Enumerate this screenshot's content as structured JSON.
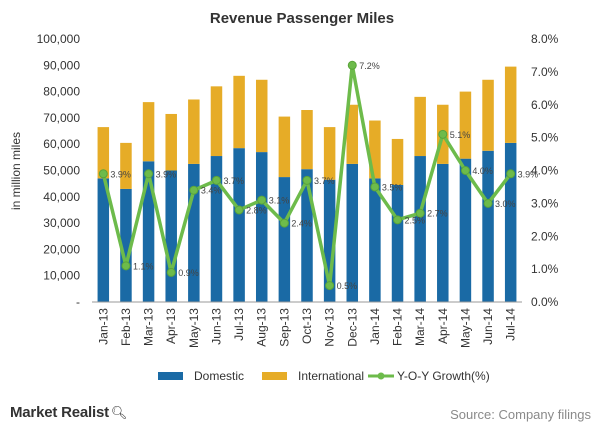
{
  "chart_data": {
    "type": "bar",
    "title": "Revenue Passenger Miles",
    "ylabel": "in million miles",
    "ylim": [
      0,
      100000
    ],
    "y2lim": [
      0.0,
      8.0
    ],
    "grid": false,
    "legend_position": "bottom",
    "categories": [
      "Jan-13",
      "Feb-13",
      "Mar-13",
      "Apr-13",
      "May-13",
      "Jun-13",
      "Jul-13",
      "Aug-13",
      "Sep-13",
      "Oct-13",
      "Nov-13",
      "Dec-13",
      "Jan-14",
      "Feb-14",
      "Mar-14",
      "Apr-14",
      "May-14",
      "Jun-14",
      "Jul-14"
    ],
    "y_ticks": [
      "-",
      "10,000",
      "20,000",
      "30,000",
      "40,000",
      "50,000",
      "60,000",
      "70,000",
      "80,000",
      "90,000",
      "100,000"
    ],
    "y2_ticks": [
      "0.0%",
      "1.0%",
      "2.0%",
      "3.0%",
      "4.0%",
      "5.0%",
      "6.0%",
      "7.0%",
      "8.0%"
    ],
    "series": [
      {
        "name": "Domestic",
        "kind": "stacked-bar",
        "color": "#1a6aa5",
        "values": [
          47000,
          43000,
          53500,
          50000,
          52500,
          55500,
          58500,
          57000,
          47500,
          50500,
          46500,
          52500,
          47000,
          44500,
          55500,
          52500,
          54500,
          57500,
          60500
        ]
      },
      {
        "name": "International",
        "kind": "stacked-bar",
        "color": "#e6ac27",
        "values": [
          19500,
          17500,
          22500,
          21500,
          24500,
          26500,
          27500,
          27500,
          23000,
          22500,
          20000,
          22500,
          22000,
          17500,
          22500,
          22500,
          25500,
          27000,
          29000
        ]
      },
      {
        "name": "Y-O-Y Growth(%)",
        "kind": "line",
        "axis": "right",
        "color": "#6dbb4b",
        "values": [
          3.9,
          1.1,
          3.9,
          0.9,
          3.4,
          3.7,
          2.8,
          3.1,
          2.4,
          3.7,
          0.5,
          7.2,
          3.5,
          2.5,
          2.7,
          5.1,
          4.0,
          3.0,
          3.9
        ],
        "labels": [
          "3.9%",
          "1.1%",
          "3.9%",
          "0.9%",
          "3.4%",
          "3.7%",
          "2.8%",
          "3.1%",
          "2.4%",
          "3.7%",
          "0.5%",
          "7.2%",
          "3.5%",
          "2.5%",
          "2.7%",
          "5.1%",
          "4.0%",
          "3.0%",
          "3.9%"
        ]
      }
    ]
  },
  "footer": {
    "brand": "Market Realist",
    "brand_icon": "magnifier-icon",
    "source": "Source: Company filings"
  }
}
